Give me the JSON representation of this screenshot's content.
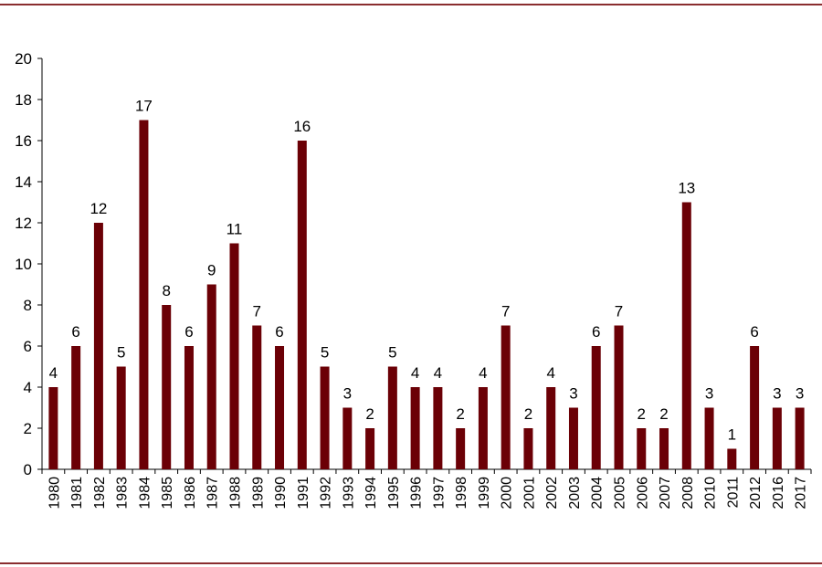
{
  "colors": {
    "bar": "#6b0006",
    "rule": "#8a2d2f",
    "axis": "#000000"
  },
  "chart_data": {
    "type": "bar",
    "title": "",
    "xlabel": "",
    "ylabel": "",
    "categories": [
      "1980",
      "1981",
      "1982",
      "1983",
      "1984",
      "1985",
      "1986",
      "1987",
      "1988",
      "1989",
      "1990",
      "1991",
      "1992",
      "1993",
      "1994",
      "1995",
      "1996",
      "1997",
      "1998",
      "1999",
      "2000",
      "2001",
      "2002",
      "2003",
      "2004",
      "2005",
      "2006",
      "2007",
      "2008",
      "2010",
      "2011",
      "2012",
      "2016",
      "2017"
    ],
    "values": [
      4,
      6,
      12,
      5,
      17,
      8,
      6,
      9,
      11,
      7,
      6,
      16,
      5,
      3,
      2,
      5,
      4,
      4,
      2,
      4,
      7,
      2,
      4,
      3,
      6,
      7,
      2,
      2,
      13,
      3,
      1,
      6,
      3,
      3
    ],
    "ylim": [
      0,
      20
    ],
    "yticks": [
      0,
      2,
      4,
      6,
      8,
      10,
      12,
      14,
      16,
      18,
      20
    ],
    "grid": false,
    "legend": "none",
    "data_labels": true
  }
}
